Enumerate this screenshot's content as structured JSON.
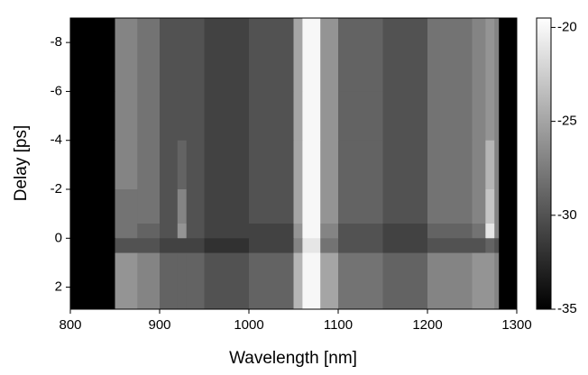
{
  "chart_data": {
    "type": "heatmap",
    "x_label": "Wavelength [nm]",
    "y_label": "Delay [ps]",
    "xbins": [
      800,
      850,
      875,
      900,
      920,
      930,
      950,
      1000,
      1050,
      1060,
      1080,
      1100,
      1150,
      1200,
      1250,
      1265,
      1275,
      1280,
      1300
    ],
    "ybins": [
      -9.0,
      -6,
      -4,
      -2,
      -0.6,
      0,
      0.6,
      2.9
    ],
    "z": [
      [
        -35,
        -27,
        -28,
        -30,
        -30,
        -30,
        -31,
        -30,
        -25,
        -20,
        -26,
        -29,
        -30,
        -28,
        -27,
        -26,
        -27,
        -35
      ],
      [
        -35,
        -27,
        -28,
        -30,
        -30,
        -30,
        -31,
        -30,
        -25,
        -20,
        -26,
        -29,
        -30,
        -28,
        -27,
        -26,
        -27,
        -35
      ],
      [
        -35,
        -27,
        -28,
        -30,
        -29,
        -30,
        -31,
        -30,
        -25,
        -20,
        -26,
        -29,
        -30,
        -28,
        -27,
        -24,
        -27,
        -35
      ],
      [
        -35,
        -28,
        -28,
        -30,
        -27,
        -30,
        -31,
        -30,
        -25,
        -20,
        -26,
        -29,
        -30,
        -28,
        -27,
        -23,
        -27,
        -35
      ],
      [
        -35,
        -28,
        -29,
        -30,
        -26,
        -30,
        -31,
        -31,
        -26,
        -20,
        -27,
        -30,
        -31,
        -29,
        -28,
        -21,
        -27,
        -35
      ],
      [
        -35,
        -30,
        -30,
        -31,
        -31,
        -31,
        -32,
        -31,
        -27,
        -21,
        -28,
        -30,
        -31,
        -30,
        -30,
        -29,
        -30,
        -35
      ],
      [
        -35,
        -26,
        -27,
        -29,
        -29,
        -29,
        -30,
        -29,
        -24,
        -20,
        -25,
        -28,
        -29,
        -27,
        -26,
        -26,
        -27,
        -35
      ]
    ],
    "xlim": [
      800,
      1300
    ],
    "xticks": [
      800,
      900,
      1000,
      1100,
      1200,
      1300
    ],
    "ylim": [
      2.9,
      -9.0
    ],
    "yticks": [
      -8,
      -6,
      -4,
      -2,
      0,
      2
    ],
    "zlim": [
      -35,
      -19.5
    ],
    "zticks": [
      -20,
      -25,
      -30,
      -35
    ]
  }
}
